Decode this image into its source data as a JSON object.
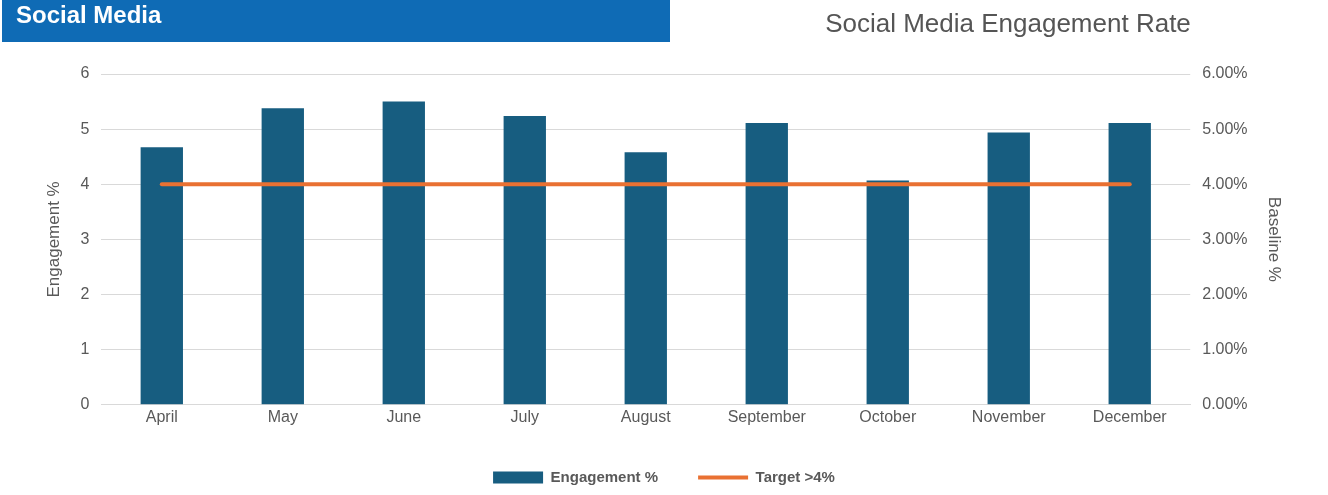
{
  "chart_data": {
    "type": "bar",
    "title": "Social Media Engagement Rate",
    "annotations": [
      "Social Media"
    ],
    "categories": [
      "April",
      "May",
      "June",
      "July",
      "August",
      "September",
      "October",
      "November",
      "December"
    ],
    "series": [
      {
        "name": "Engagement %",
        "color": "#175d80",
        "values": [
          4.67,
          5.38,
          5.5,
          5.24,
          4.58,
          5.11,
          4.07,
          4.94,
          5.11
        ]
      },
      {
        "name": "Target >4%",
        "type": "line",
        "axis": "y2",
        "color": "#e97132",
        "values": [
          4,
          4,
          4,
          4,
          4,
          4,
          4,
          4,
          4
        ]
      }
    ],
    "ylabel": "Engagement %",
    "y2label": "Baseline %",
    "ylim": [
      0,
      6
    ],
    "yticks": [
      0,
      1,
      2,
      3,
      4,
      5,
      6
    ],
    "y2lim": [
      0,
      6
    ],
    "y2ticks": [
      {
        "value": 0,
        "label": "0.00%"
      },
      {
        "value": 1,
        "label": "1.00%"
      },
      {
        "value": 2,
        "label": "2.00%"
      },
      {
        "value": 3,
        "label": "3.00%"
      },
      {
        "value": 4,
        "label": "4.00%"
      },
      {
        "value": 5,
        "label": "5.00%"
      },
      {
        "value": 6,
        "label": "6.00%"
      }
    ],
    "grid": "y",
    "legend": "bottom",
    "marker": "none"
  }
}
